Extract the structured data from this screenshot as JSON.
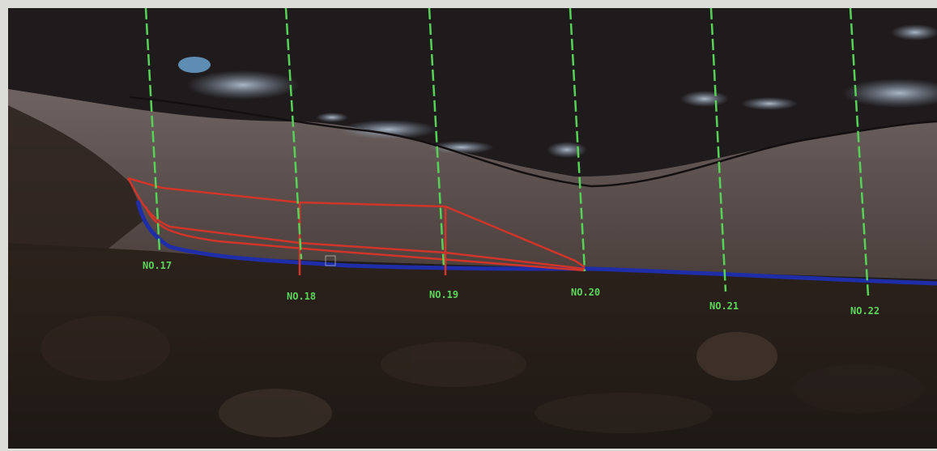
{
  "image": {
    "description_colors": {
      "sky_dark": "#1d1b1c",
      "water_band": "#5b4f4d",
      "ground": "#2a1f1a",
      "snow": "#9fb0c4",
      "station_line": "#56d356",
      "red_lines": "#d1352a",
      "blue_line": "#1f2ea8"
    }
  },
  "stations": [
    {
      "label": "NO.17",
      "color": "#56d356"
    },
    {
      "label": "NO.18",
      "color": "#56d356"
    },
    {
      "label": "NO.19",
      "color": "#56d356"
    },
    {
      "label": "NO.20",
      "color": "#56d356"
    },
    {
      "label": "NO.21",
      "color": "#56d356"
    },
    {
      "label": "NO.22",
      "color": "#56d356"
    }
  ]
}
